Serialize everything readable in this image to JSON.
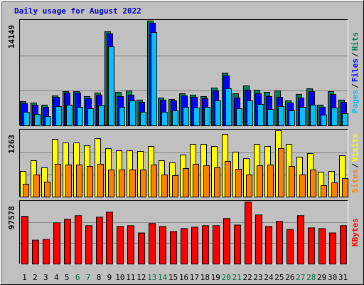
{
  "chart_data": {
    "type": "bar",
    "title": "Daily usage for August 2022",
    "legend_separator": "/",
    "categories": [
      "1",
      "2",
      "3",
      "4",
      "5",
      "6",
      "7",
      "8",
      "9",
      "10",
      "11",
      "12",
      "13",
      "14",
      "15",
      "16",
      "17",
      "18",
      "19",
      "20",
      "21",
      "22",
      "23",
      "24",
      "25",
      "26",
      "27",
      "28",
      "29",
      "30",
      "31"
    ],
    "category_label_colors": [
      "#000000",
      "#000000",
      "#000000",
      "#000000",
      "#000000",
      "#007040",
      "#007040",
      "#000000",
      "#000000",
      "#000000",
      "#000000",
      "#000000",
      "#007040",
      "#007040",
      "#000000",
      "#000000",
      "#000000",
      "#000000",
      "#000000",
      "#007040",
      "#007040",
      "#000000",
      "#000000",
      "#000000",
      "#000000",
      "#000000",
      "#007040",
      "#007040",
      "#000000",
      "#000000",
      "#000000"
    ],
    "panels": [
      {
        "ylim": [
          0,
          14149
        ],
        "yticks": [
          14149
        ],
        "series": [
          {
            "name": "Hits",
            "color": "#00805c",
            "values": [
              3270,
              3080,
              2790,
              4040,
              4620,
              4620,
              3950,
              4430,
              12700,
              4520,
              4720,
              3470,
              14149,
              3750,
              3560,
              4330,
              4140,
              3950,
              5100,
              7120,
              4330,
              5390,
              4810,
              4520,
              4720,
              3370,
              4240,
              5000,
              2790,
              4620,
              3470
            ]
          },
          {
            "name": "Files",
            "color": "#0000ff",
            "values": [
              3000,
              2790,
              2500,
              3850,
              4430,
              4430,
              3660,
              4140,
              12420,
              3950,
              4140,
              3180,
              13860,
              3470,
              3370,
              4040,
              3850,
              3660,
              4720,
              6740,
              3750,
              4810,
              4330,
              3950,
              3850,
              3080,
              3750,
              4620,
              2500,
              4240,
              3180
            ]
          },
          {
            "name": "Pages",
            "color": "#00c0ff",
            "values": [
              1830,
              1540,
              1250,
              2600,
              2790,
              2500,
              2310,
              2700,
              10680,
              2500,
              3370,
              1830,
              12610,
              1830,
              2020,
              2500,
              2410,
              2500,
              3370,
              5000,
              2310,
              3370,
              2890,
              2210,
              2600,
              2020,
              2500,
              2790,
              1440,
              2410,
              1640
            ]
          }
        ]
      },
      {
        "ylim": [
          0,
          1263
        ],
        "yticks": [
          1263
        ],
        "series": [
          {
            "name": "Visits",
            "color": "#ffff00",
            "values": [
              489,
              693,
              557,
              1100,
              1032,
              1032,
              978,
              1114,
              923,
              883,
              883,
              869,
              964,
              693,
              652,
              801,
              1005,
              1005,
              964,
              1195,
              856,
              733,
              1005,
              964,
              1263,
              1005,
              760,
              828,
              475,
              489,
              788
            ]
          },
          {
            "name": "Sites",
            "color": "#ff8000",
            "values": [
              244,
              421,
              285,
              625,
              611,
              611,
              584,
              625,
              516,
              516,
              516,
              516,
              611,
              421,
              407,
              543,
              625,
              597,
              557,
              679,
              530,
              421,
              597,
              611,
              923,
              584,
              421,
              516,
              217,
              272,
              353
            ]
          }
        ]
      },
      {
        "ylim": [
          0,
          97578
        ],
        "yticks": [
          97578
        ],
        "series": [
          {
            "name": "KBytes",
            "color": "#ff0000",
            "values": [
              74900,
              37500,
              38600,
              64700,
              70400,
              76000,
              60200,
              73800,
              81700,
              59000,
              60200,
              48800,
              63600,
              59000,
              51100,
              55600,
              57900,
              60200,
              60200,
              71500,
              61300,
              97578,
              77200,
              59000,
              67000,
              54500,
              76000,
              56800,
              55600,
              48800,
              60200
            ]
          }
        ]
      }
    ]
  }
}
